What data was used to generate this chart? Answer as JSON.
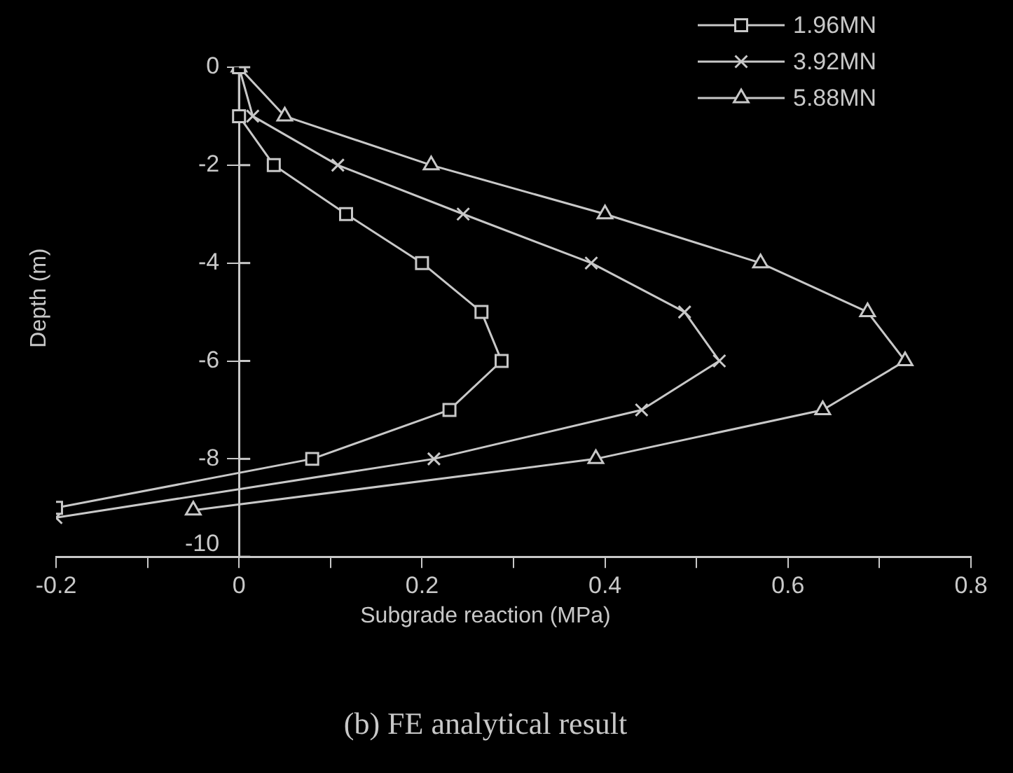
{
  "chart_data": {
    "type": "line",
    "xlabel": "Subgrade reaction (MPa)",
    "ylabel": "Depth (m)",
    "annotations": [
      "(b) FE analytical result"
    ],
    "xlim": [
      -0.2,
      0.8
    ],
    "ylim": [
      -10,
      0
    ],
    "xticks": [
      -0.2,
      {
        "value": -0.1,
        "label": null
      },
      0,
      {
        "value": 0.1,
        "label": null
      },
      0.2,
      {
        "value": 0.3,
        "label": null
      },
      0.4,
      {
        "value": 0.5,
        "label": null
      },
      0.6,
      {
        "value": 0.7,
        "label": null
      },
      0.8
    ],
    "yticks": [
      0,
      -2,
      -4,
      -6,
      -8,
      -10
    ],
    "grid": false,
    "legend": "top right",
    "line_style": "solid",
    "series": [
      {
        "name": "1.96MN",
        "color": "#c8c8c8",
        "marker": "square",
        "x": [
          0,
          0,
          0.038,
          0.117,
          0.2,
          0.265,
          0.287,
          0.23,
          0.08,
          -0.2
        ],
        "values": [
          0,
          -1,
          -2,
          -3,
          -4,
          -5,
          -6,
          -7,
          -8,
          -9
        ]
      },
      {
        "name": "3.92MN",
        "color": "#c8c8c8",
        "marker": "cross",
        "x": [
          0,
          0.015,
          0.108,
          0.245,
          0.385,
          0.487,
          0.525,
          0.44,
          0.213,
          -0.2
        ],
        "values": [
          0,
          -1,
          -2,
          -3,
          -4,
          -5,
          -6,
          -7,
          -8,
          -9.2
        ]
      },
      {
        "name": "5.88MN",
        "color": "#c8c8c8",
        "marker": "triangle",
        "x": [
          0,
          0.05,
          0.21,
          0.4,
          0.57,
          0.687,
          0.728,
          0.638,
          0.39,
          -0.05
        ],
        "values": [
          0,
          -1,
          -2,
          -3,
          -4,
          -5,
          -6,
          -7,
          -8,
          -9.05
        ]
      }
    ]
  }
}
